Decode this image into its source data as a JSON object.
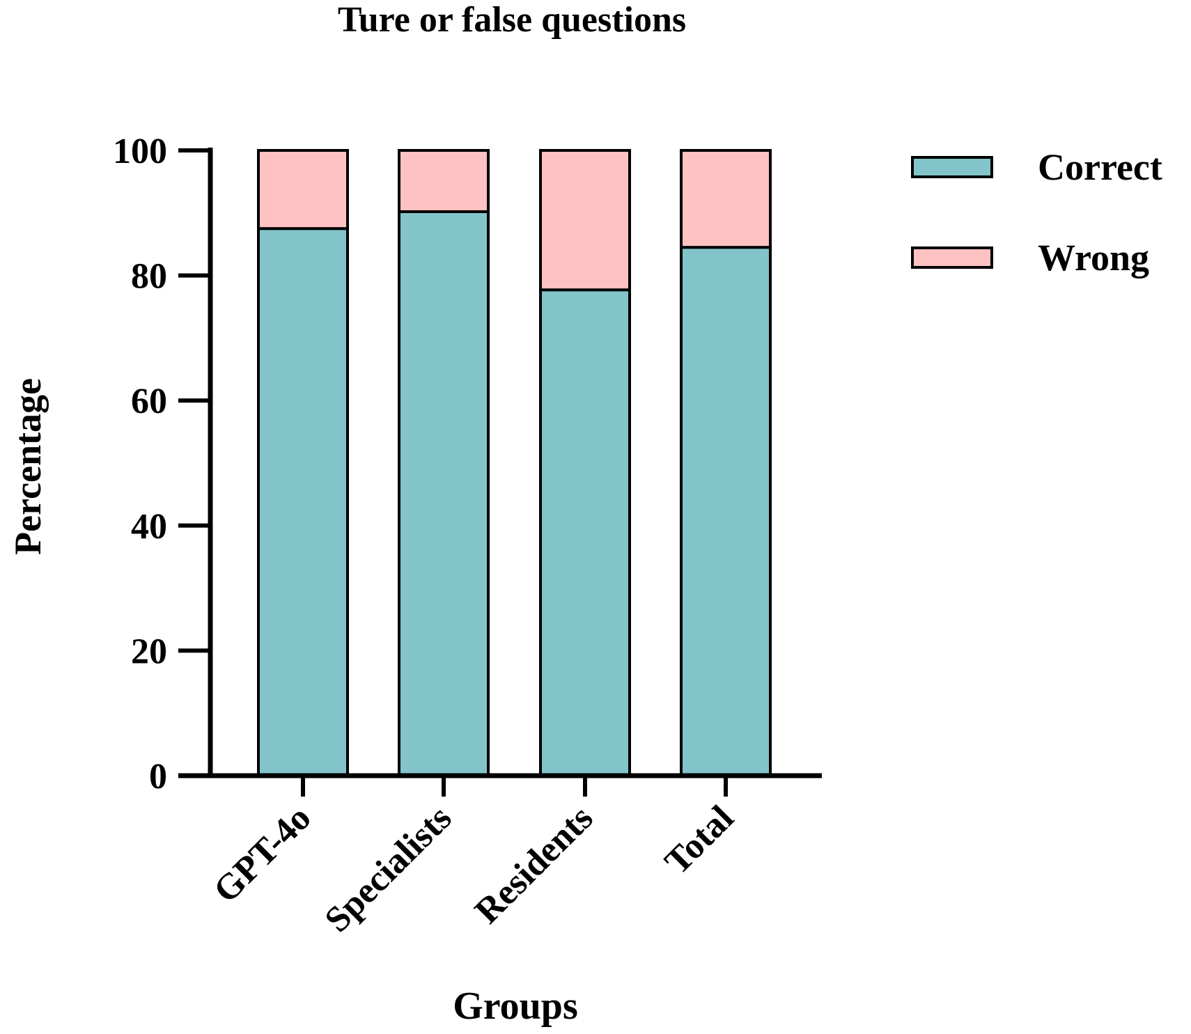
{
  "chart_data": {
    "type": "bar",
    "stacked": true,
    "title": "Ture or false questions",
    "xlabel": "Groups",
    "ylabel": "Percentage",
    "ylim": [
      0,
      100
    ],
    "yticks": [
      0,
      20,
      40,
      60,
      80,
      100
    ],
    "categories": [
      "GPT-4o",
      "Specialists",
      "Residents",
      "Total"
    ],
    "series": [
      {
        "name": "Correct",
        "values": [
          87.5,
          90.2,
          77.7,
          84.5
        ],
        "color": "#82c4c9"
      },
      {
        "name": "Wrong",
        "values": [
          12.5,
          9.8,
          22.3,
          15.5
        ],
        "color": "#ffc2c2"
      }
    ],
    "grid": false,
    "legend_position": "top-right"
  }
}
